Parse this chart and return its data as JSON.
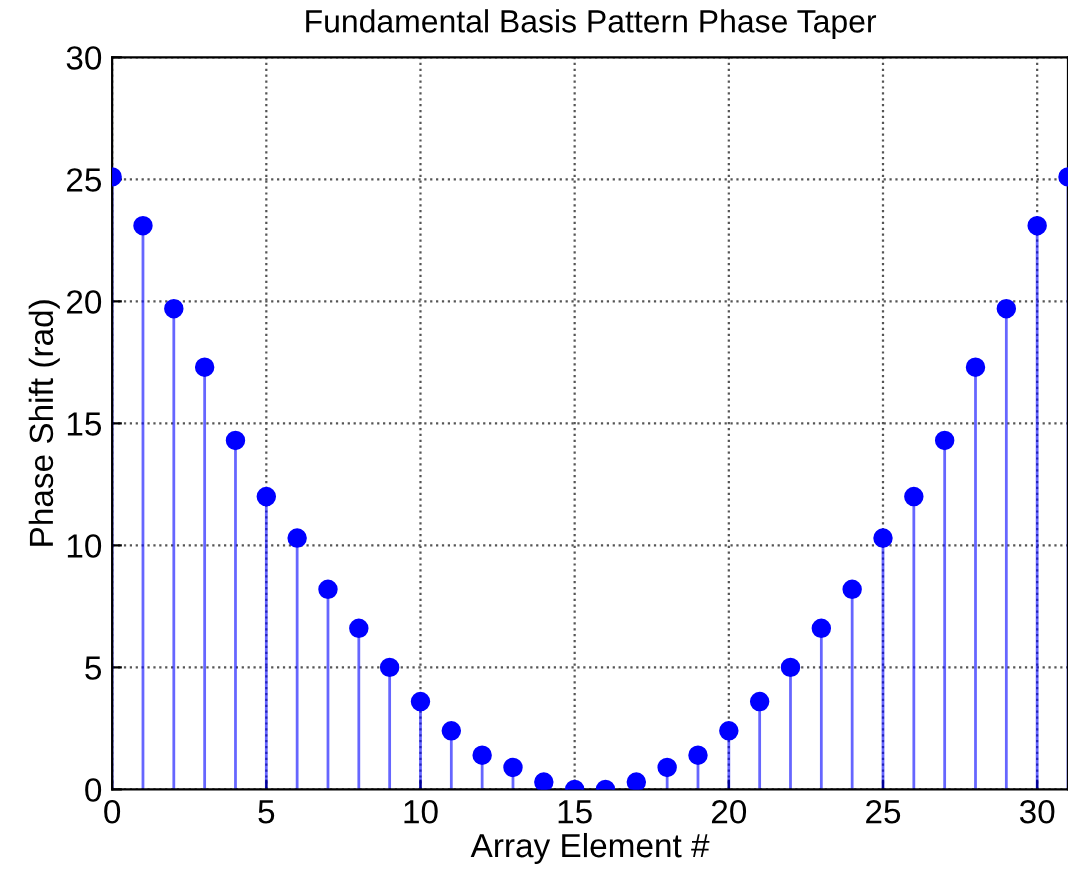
{
  "chart_data": {
    "type": "lollipop",
    "title": "Fundamental Basis Pattern Phase Taper",
    "xlabel": "Array Element #",
    "ylabel": "Phase Shift (rad)",
    "x": [
      0,
      1,
      2,
      3,
      4,
      5,
      6,
      7,
      8,
      9,
      10,
      11,
      12,
      13,
      14,
      15,
      16,
      17,
      18,
      19,
      20,
      21,
      22,
      23,
      24,
      25,
      26,
      27,
      28,
      29,
      30,
      31
    ],
    "series": [
      {
        "color": "#0000ff",
        "values": [
          25.1,
          23.1,
          19.7,
          17.3,
          14.3,
          12.0,
          10.3,
          8.2,
          6.6,
          5.0,
          3.6,
          2.4,
          1.4,
          0.9,
          0.3,
          0.0,
          0.0,
          0.3,
          0.9,
          1.4,
          2.4,
          3.6,
          5.0,
          6.6,
          8.2,
          10.3,
          12.0,
          14.3,
          17.3,
          19.7,
          23.1,
          25.1
        ]
      }
    ],
    "xlim": [
      0,
      31
    ],
    "ylim": [
      0,
      30
    ],
    "xticks": [
      0,
      5,
      10,
      15,
      20,
      25,
      30
    ],
    "yticks": [
      0,
      5,
      10,
      15,
      20,
      25,
      30
    ],
    "grid": true,
    "marker": "circle"
  }
}
